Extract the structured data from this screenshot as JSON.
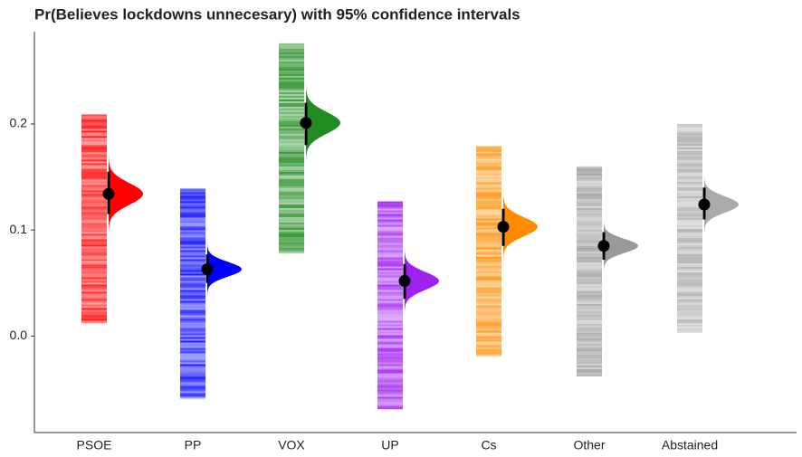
{
  "chart_data": {
    "type": "interval",
    "title": "Pr(Believes lockdowns unnecesary) with 95% confidence intervals",
    "categories": [
      "PSOE",
      "PP",
      "VOX",
      "UP",
      "Cs",
      "Other",
      "Abstained"
    ],
    "values": [
      0.134,
      0.063,
      0.201,
      0.052,
      0.103,
      0.085,
      0.124
    ],
    "ci_low": [
      0.115,
      0.05,
      0.18,
      0.035,
      0.085,
      0.072,
      0.11
    ],
    "ci_high": [
      0.155,
      0.077,
      0.22,
      0.068,
      0.12,
      0.098,
      0.14
    ],
    "range_low": [
      0.012,
      -0.059,
      0.078,
      -0.069,
      -0.019,
      -0.038,
      0.003
    ],
    "range_high": [
      0.209,
      0.139,
      0.276,
      0.127,
      0.179,
      0.16,
      0.2
    ],
    "colors": [
      "#ff0000",
      "#0000ff",
      "#228b22",
      "#a020f0",
      "#ff8c00",
      "#999999",
      "#aaaaaa"
    ],
    "ylim": [
      -0.091,
      0.287
    ],
    "yticks": [
      {
        "value": 0,
        "label": "0.0"
      },
      0.1,
      0.2
    ]
  }
}
